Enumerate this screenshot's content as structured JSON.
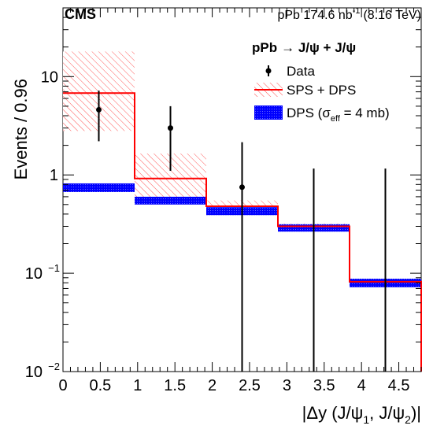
{
  "header": {
    "experiment": "CMS",
    "lumi_prefix": "pPb 174.6 nb",
    "lumi_exp": "-1",
    "energy": "(8.16 TeV)"
  },
  "legend": {
    "process_bold": "pPb",
    "process_rest": "→ J/ψ + J/ψ",
    "data_label": "Data",
    "sps_label": "SPS + DPS",
    "dps_label_pre": "DPS (σ",
    "dps_label_sub": "eff",
    "dps_label_post": " = 4 mb)"
  },
  "axes": {
    "ylabel": "Events / 0.96",
    "xlabel_pre": "|Δy (J/ψ",
    "xlabel_sub1": "1",
    "xlabel_mid": ", J/ψ",
    "xlabel_sub2": "2",
    "xlabel_post": ")|"
  },
  "chart_data": {
    "type": "histogram",
    "x_scale": "linear",
    "y_scale": "log",
    "xlim": [
      0,
      4.8
    ],
    "ylim": [
      0.01,
      50
    ],
    "x_ticks": [
      {
        "value": 0,
        "label": "0"
      },
      {
        "value": 0.5,
        "label": "0.5"
      },
      {
        "value": 1,
        "label": "1"
      },
      {
        "value": 1.5,
        "label": "1.5"
      },
      {
        "value": 2,
        "label": "2"
      },
      {
        "value": 2.5,
        "label": "2.5"
      },
      {
        "value": 3,
        "label": "3"
      },
      {
        "value": 3.5,
        "label": "3.5"
      },
      {
        "value": 4,
        "label": "4"
      },
      {
        "value": 4.5,
        "label": "4.5"
      }
    ],
    "y_ticks": [
      {
        "value": 0.01,
        "base": "10",
        "exp": "−2"
      },
      {
        "value": 0.1,
        "base": "10",
        "exp": "−1"
      },
      {
        "value": 1,
        "base": "1",
        "exp": ""
      },
      {
        "value": 10,
        "base": "10",
        "exp": ""
      }
    ],
    "bin_edges": [
      0,
      0.96,
      1.92,
      2.88,
      3.84,
      4.8
    ],
    "series": [
      {
        "name": "Data",
        "kind": "points",
        "color": "#000000",
        "x": [
          0.48,
          1.44,
          2.4,
          3.36,
          4.32
        ],
        "y": [
          4.6,
          3.0,
          0.75,
          null,
          null
        ],
        "err_low": [
          2.4,
          1.9,
          0.75,
          null,
          null
        ],
        "err_high": [
          2.6,
          2.0,
          1.4,
          1.15,
          1.15
        ]
      },
      {
        "name": "SPS + DPS",
        "kind": "step",
        "color": "#ff0000",
        "values": [
          6.8,
          0.92,
          0.48,
          0.3,
          0.082
        ],
        "band_low": [
          2.8,
          0.5,
          0.44,
          0.27,
          0.076
        ],
        "band_high": [
          18.0,
          1.65,
          0.55,
          0.32,
          0.088
        ]
      },
      {
        "name": "DPS (σeff = 4 mb)",
        "kind": "band",
        "color": "#0000ff",
        "values": [
          0.74,
          0.55,
          0.43,
          0.29,
          0.08
        ],
        "band_low": [
          0.67,
          0.5,
          0.39,
          0.265,
          0.072
        ],
        "band_high": [
          0.82,
          0.6,
          0.47,
          0.315,
          0.088
        ]
      }
    ]
  }
}
